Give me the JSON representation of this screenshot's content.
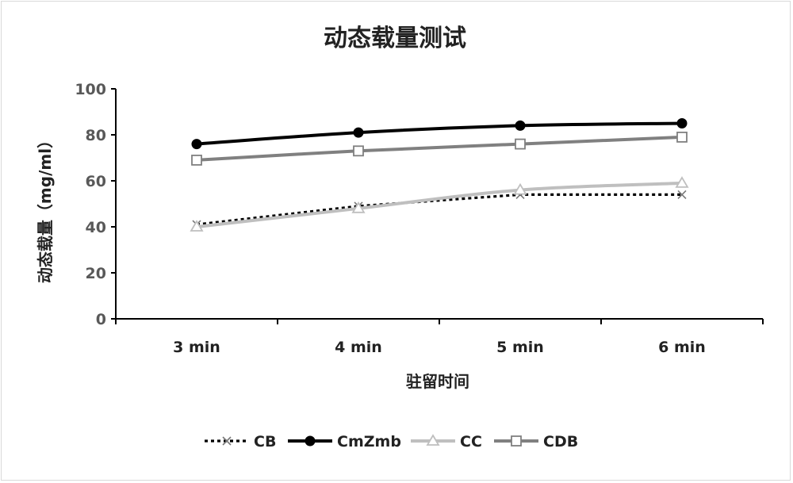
{
  "chart_data": {
    "type": "line",
    "title": "动态载量测试",
    "xlabel": "驻留时间",
    "ylabel": "动态载量（mg/ml）",
    "categories": [
      "3 min",
      "4 min",
      "5 min",
      "6 min"
    ],
    "ylim": [
      0,
      100
    ],
    "yticks": [
      0,
      20,
      40,
      60,
      80,
      100
    ],
    "grid": false,
    "legend_position": "bottom",
    "series": [
      {
        "name": "CB",
        "values": [
          41,
          49,
          54,
          54
        ],
        "color": "#000000",
        "dash": "dotted",
        "marker": "x-icon"
      },
      {
        "name": "CmZmb",
        "values": [
          76,
          81,
          84,
          85
        ],
        "color": "#000000",
        "dash": "solid",
        "marker": "filled-circle-icon"
      },
      {
        "name": "CC",
        "values": [
          40,
          48,
          56,
          59
        ],
        "color": "#bfbfbf",
        "dash": "solid",
        "marker": "triangle-icon"
      },
      {
        "name": "CDB",
        "values": [
          69,
          73,
          76,
          79
        ],
        "color": "#808080",
        "dash": "solid",
        "marker": "square-icon"
      }
    ]
  }
}
